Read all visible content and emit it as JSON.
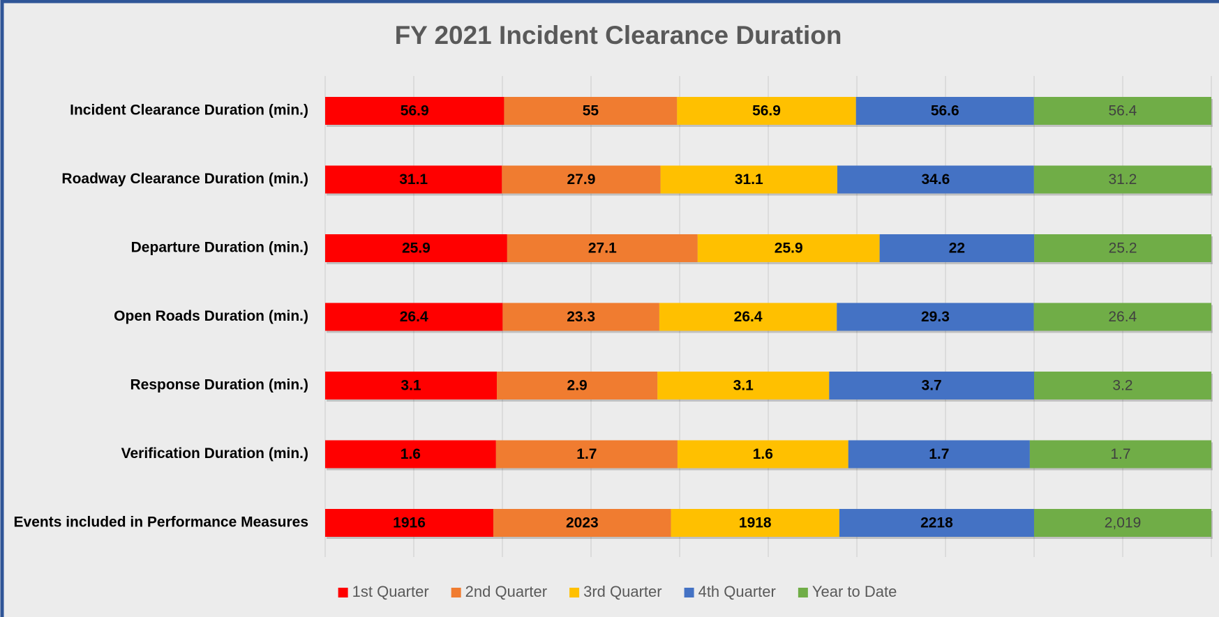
{
  "chart_data": {
    "type": "stacked_bar_100_horizontal",
    "title": "FY 2021 Incident Clearance Duration",
    "categories": [
      "Incident Clearance Duration (min.)",
      "Roadway Clearance Duration (min.)",
      "Departure Duration (min.)",
      "Open Roads Duration (min.)",
      "Response Duration (min.)",
      "Verification Duration (min.)",
      "Events included in Performance Measures"
    ],
    "series": [
      {
        "name": "1st Quarter",
        "color": "#ff0000",
        "label_color": "#000000",
        "values": [
          56.9,
          31.1,
          25.9,
          26.4,
          3.1,
          1.6,
          1916
        ]
      },
      {
        "name": "2nd Quarter",
        "color": "#f07c30",
        "label_color": "#000000",
        "values": [
          55,
          27.9,
          27.1,
          23.3,
          2.9,
          1.7,
          2023
        ]
      },
      {
        "name": "3rd Quarter",
        "color": "#ffc000",
        "label_color": "#000000",
        "values": [
          56.9,
          31.1,
          25.9,
          26.4,
          3.1,
          1.6,
          1918
        ]
      },
      {
        "name": "4th Quarter",
        "color": "#4472c4",
        "label_color": "#000000",
        "values": [
          56.6,
          34.6,
          22,
          29.3,
          3.7,
          1.7,
          2218
        ]
      },
      {
        "name": "Year to Date",
        "color": "#70ad47",
        "label_color": "#404040",
        "values": [
          56.4,
          31.2,
          25.2,
          26.4,
          3.2,
          1.7,
          2019
        ],
        "value_labels": [
          "56.4",
          "31.2",
          "25.2",
          "26.4",
          "3.2",
          "1.7",
          "2,019"
        ]
      }
    ],
    "xlim": [
      0,
      100
    ],
    "xticks": [
      0,
      10,
      20,
      30,
      40,
      50,
      60,
      70,
      80,
      90,
      100
    ],
    "grid": true,
    "legend": "bottom"
  }
}
